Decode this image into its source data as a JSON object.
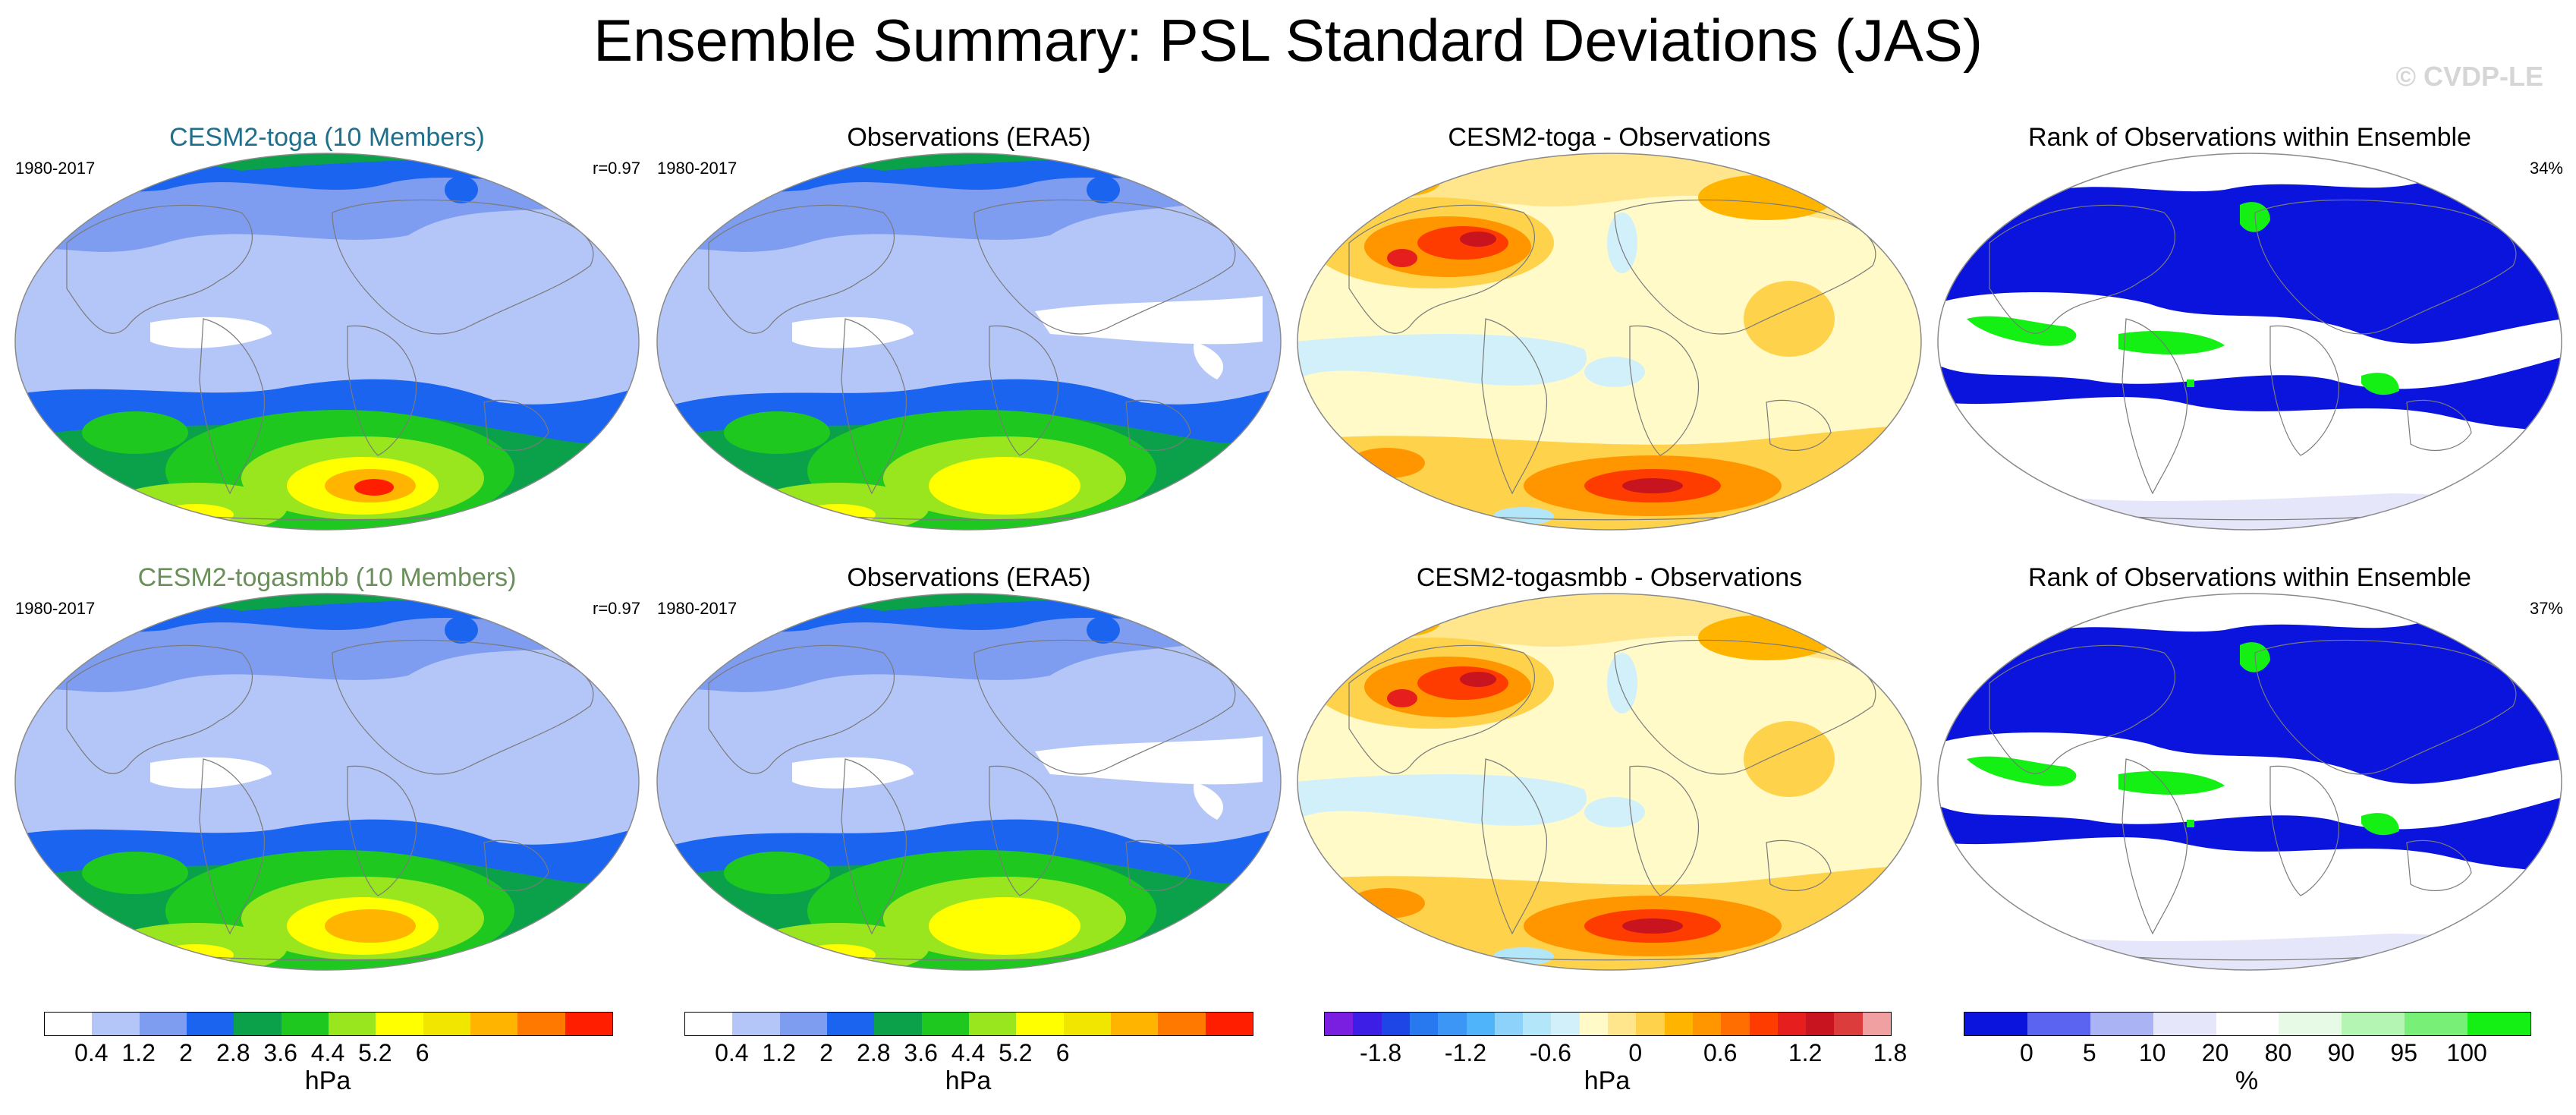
{
  "title": "Ensemble Summary: PSL Standard Deviations (JAS)",
  "watermark": "© CVDP-LE",
  "rows": [
    {
      "panels": [
        {
          "title": "CESM2-toga (10 Members)",
          "title_color": "#1f6f8b",
          "left_text": "1980-2017",
          "right_text": "r=0.97",
          "type": "sd_model"
        },
        {
          "title": "Observations (ERA5)",
          "title_color": "#000000",
          "left_text": "1980-2017",
          "right_text": "",
          "type": "sd_obs"
        },
        {
          "title": "CESM2-toga - Observations",
          "title_color": "#000000",
          "left_text": "",
          "right_text": "",
          "type": "diff"
        },
        {
          "title": "Rank of Observations within Ensemble",
          "title_color": "#000000",
          "left_text": "",
          "right_text": "34%",
          "type": "rank"
        }
      ]
    },
    {
      "panels": [
        {
          "title": "CESM2-togasmbb (10 Members)",
          "title_color": "#6a8f5a",
          "left_text": "1980-2017",
          "right_text": "r=0.97",
          "type": "sd_model"
        },
        {
          "title": "Observations (ERA5)",
          "title_color": "#000000",
          "left_text": "1980-2017",
          "right_text": "",
          "type": "sd_obs"
        },
        {
          "title": "CESM2-togasmbb - Observations",
          "title_color": "#000000",
          "left_text": "",
          "right_text": "",
          "type": "diff"
        },
        {
          "title": "Rank of Observations within Ensemble",
          "title_color": "#000000",
          "left_text": "",
          "right_text": "37%",
          "type": "rank"
        }
      ]
    }
  ],
  "colorbars": [
    {
      "unit": "hPa",
      "ticks": [
        "0.4",
        "1.2",
        "2",
        "2.8",
        "3.6",
        "4.4",
        "5.2",
        "6"
      ],
      "colors": [
        "#ffffff",
        "#b4c6f7",
        "#7e9cf0",
        "#1a64f0",
        "#0aa14a",
        "#1ec81e",
        "#9ae61e",
        "#ffff00",
        "#f0e600",
        "#ffb400",
        "#ff7800",
        "#ff1e00"
      ]
    },
    {
      "unit": "hPa",
      "ticks": [
        "0.4",
        "1.2",
        "2",
        "2.8",
        "3.6",
        "4.4",
        "5.2",
        "6"
      ],
      "colors": [
        "#ffffff",
        "#b4c6f7",
        "#7e9cf0",
        "#1a64f0",
        "#0aa14a",
        "#1ec81e",
        "#9ae61e",
        "#ffff00",
        "#f0e600",
        "#ffb400",
        "#ff7800",
        "#ff1e00"
      ]
    },
    {
      "unit": "hPa",
      "ticks": [
        "-1.8",
        "-1.2",
        "-0.6",
        "0",
        "0.6",
        "1.2",
        "1.8"
      ],
      "colors": [
        "#7a1fe0",
        "#3c1ee6",
        "#1e46e6",
        "#2878f0",
        "#3c96f5",
        "#50b4fa",
        "#8cd2fa",
        "#b4e6fa",
        "#d2f0fa",
        "#fffac8",
        "#ffe68c",
        "#ffd24b",
        "#ffb400",
        "#ff9600",
        "#ff6e00",
        "#ff3c00",
        "#e61e1e",
        "#c8141e",
        "#dc3c3c",
        "#f0a0a0"
      ]
    },
    {
      "unit": "%",
      "ticks": [
        "0",
        "5",
        "10",
        "20",
        "80",
        "90",
        "95",
        "100"
      ],
      "colors": [
        "#0a14dc",
        "#5a64f0",
        "#aab4f5",
        "#e6e6fa",
        "#ffffff",
        "#e6fae6",
        "#b4f5b4",
        "#78f078",
        "#14f014"
      ]
    }
  ],
  "colors": {
    "land_outline": "#7a7a7a",
    "map_border": "#8a8a8a"
  }
}
